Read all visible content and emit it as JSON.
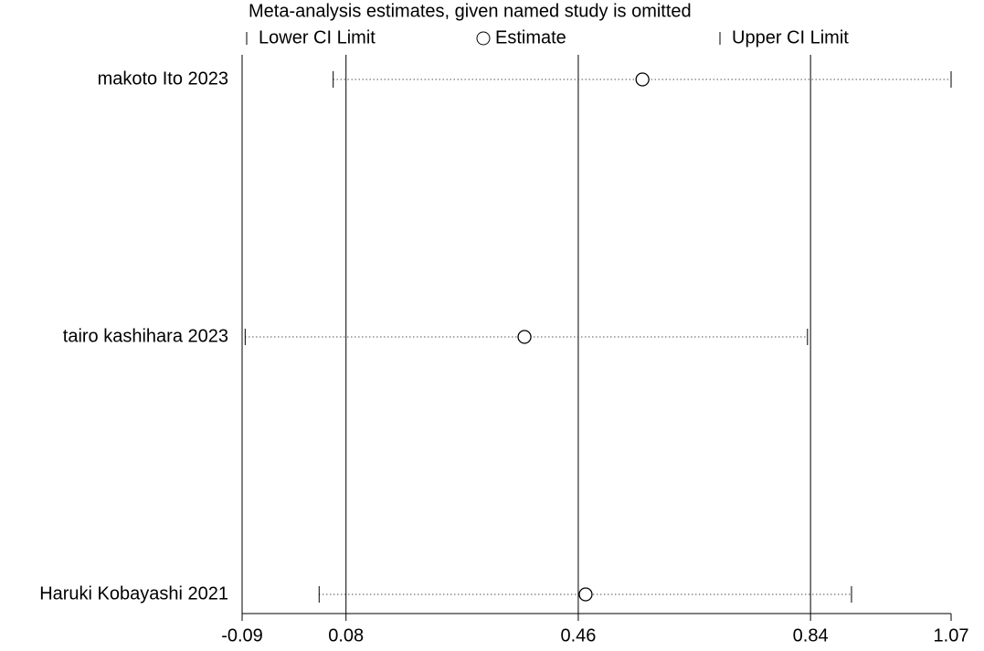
{
  "chart_data": {
    "type": "forest",
    "title": "Meta-analysis estimates, given named study is omitted",
    "categories": [
      "makoto Ito 2023",
      "tairo kashihara 2023",
      "Haruki Kobayashi 2021"
    ],
    "series": [
      {
        "name": "Lower CI Limit",
        "color": "#000000",
        "values": [
          0.059,
          -0.085,
          0.036
        ]
      },
      {
        "name": "Estimate",
        "color": "#000000",
        "values": [
          0.565,
          0.372,
          0.472
        ]
      },
      {
        "name": "Upper CI Limit",
        "color": "#000000",
        "values": [
          1.07,
          0.835,
          0.907
        ]
      }
    ],
    "xlim": [
      -0.09,
      1.07
    ],
    "xticks": [
      -0.09,
      0.08,
      0.46,
      0.84,
      1.07
    ],
    "grid": true
  }
}
